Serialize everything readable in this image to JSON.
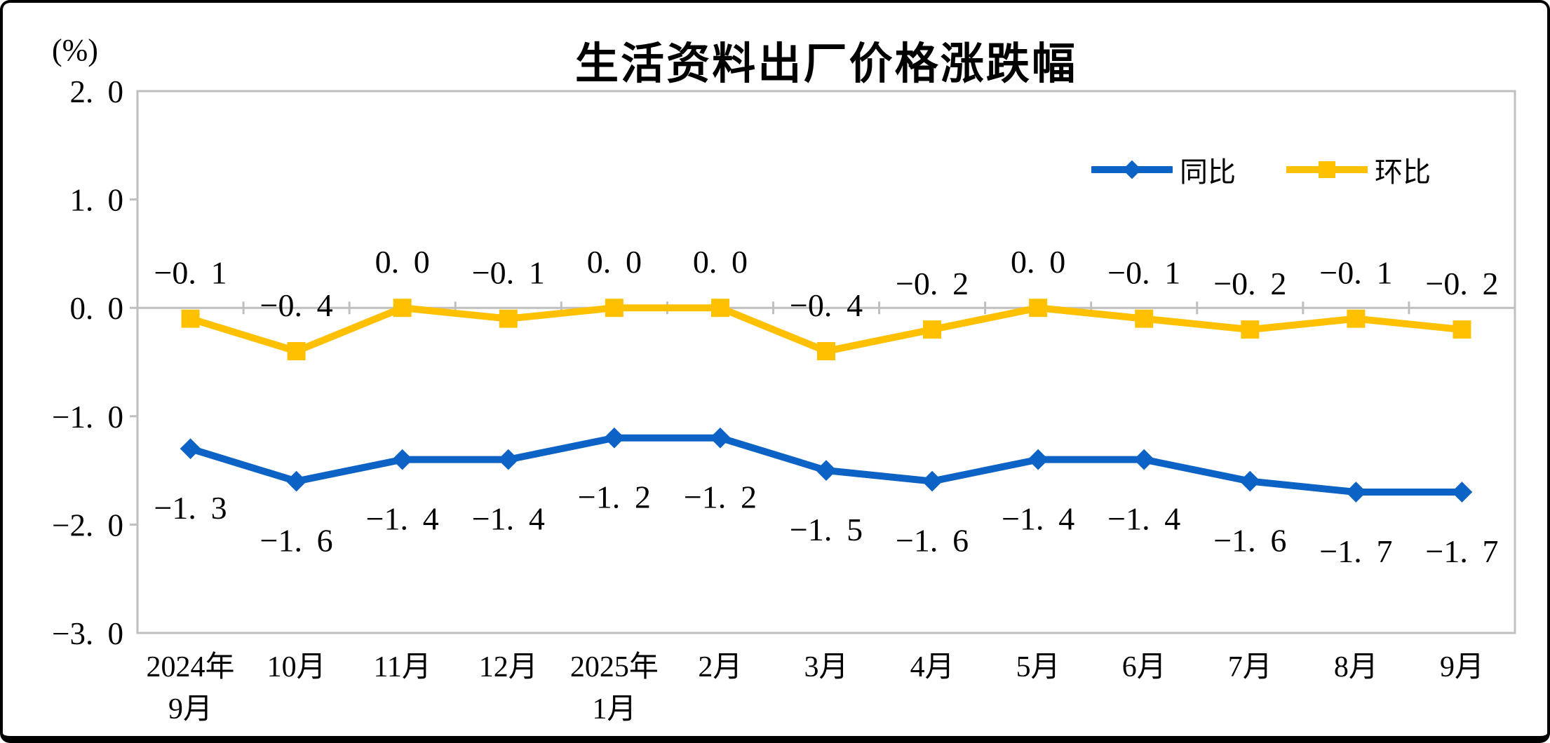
{
  "chart_data": {
    "type": "line",
    "title": "生活资料出厂价格涨跌幅",
    "unit_label": "(%)",
    "categories": [
      "2024年9月",
      "10月",
      "11月",
      "12月",
      "2025年1月",
      "2月",
      "3月",
      "4月",
      "5月",
      "6月",
      "7月",
      "8月",
      "9月"
    ],
    "category_labels_two_line": [
      [
        "2024年",
        "9月"
      ],
      [
        "10月",
        ""
      ],
      [
        "11月",
        ""
      ],
      [
        "12月",
        ""
      ],
      [
        "2025年",
        "1月"
      ],
      [
        "2月",
        ""
      ],
      [
        "3月",
        ""
      ],
      [
        "4月",
        ""
      ],
      [
        "5月",
        ""
      ],
      [
        "6月",
        ""
      ],
      [
        "7月",
        ""
      ],
      [
        "8月",
        ""
      ],
      [
        "9月",
        ""
      ]
    ],
    "series": [
      {
        "name": "同比",
        "color": "#0D62C6",
        "marker": "diamond",
        "label_position": "below",
        "values": [
          -1.3,
          -1.6,
          -1.4,
          -1.4,
          -1.2,
          -1.2,
          -1.5,
          -1.6,
          -1.4,
          -1.4,
          -1.6,
          -1.7,
          -1.7
        ]
      },
      {
        "name": "环比",
        "color": "#FFC000",
        "marker": "square",
        "label_position": "above",
        "values": [
          -0.1,
          -0.4,
          0.0,
          -0.1,
          0.0,
          0.0,
          -0.4,
          -0.2,
          0.0,
          -0.1,
          -0.2,
          -0.1,
          -0.2
        ]
      }
    ],
    "ylim": [
      -3.0,
      2.0
    ],
    "y_tick_step": 1.0,
    "y_tick_labels": [
      "2.0",
      "1.0",
      "0.0",
      "-1.0",
      "-2.0",
      "-3.0"
    ],
    "axis_color": "#BFBFBF",
    "text_color": "#000000",
    "background_color": "#FFFFFF",
    "grid": false,
    "data_labels": true,
    "legend": {
      "position": "top-right-inside",
      "entries": [
        "同比",
        "环比"
      ]
    }
  }
}
